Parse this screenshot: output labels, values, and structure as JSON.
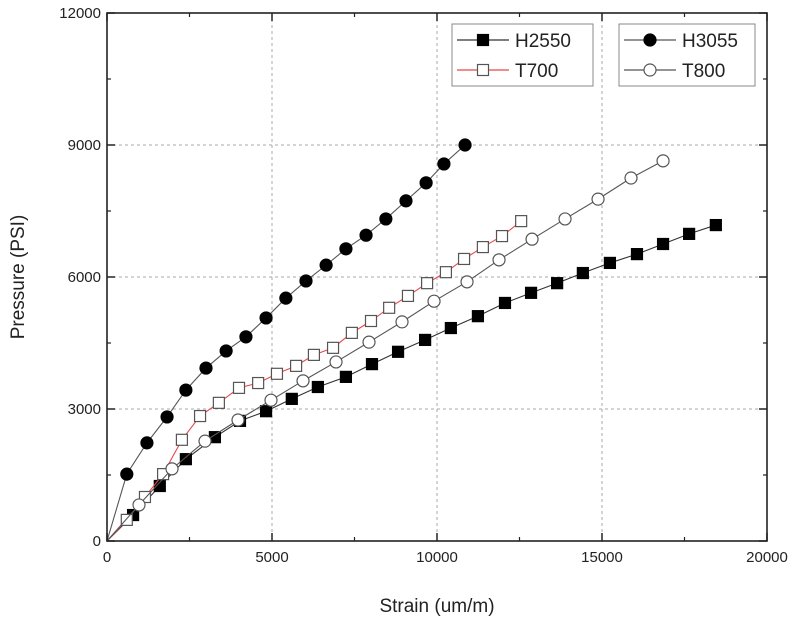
{
  "chart_data": {
    "type": "line",
    "title": "",
    "xlabel": "Strain (um/m)",
    "ylabel": "Pressure (PSI)",
    "xlim": [
      0,
      20000
    ],
    "ylim": [
      0,
      12000
    ],
    "xticks": [
      0,
      5000,
      10000,
      15000,
      20000
    ],
    "yticks": [
      0,
      3000,
      6000,
      9000,
      12000
    ],
    "grid": true,
    "legend_placement": "top-right",
    "series": [
      {
        "name": "H2550",
        "marker": "filled-square",
        "line_color": "#333333",
        "x": [
          0,
          790,
          1600,
          2390,
          3270,
          4030,
          4820,
          5600,
          6390,
          7240,
          8030,
          8820,
          9640,
          10420,
          11240,
          12060,
          12850,
          13640,
          14420,
          15240,
          16060,
          16850,
          17640,
          18450
        ],
        "y": [
          0,
          590,
          1250,
          1860,
          2360,
          2730,
          2950,
          3230,
          3500,
          3730,
          4020,
          4300,
          4570,
          4840,
          5110,
          5410,
          5640,
          5860,
          6090,
          6320,
          6520,
          6750,
          6980,
          7180
        ]
      },
      {
        "name": "T700",
        "marker": "open-square",
        "line_color": "#e8484b",
        "x": [
          0,
          600,
          1150,
          1700,
          2270,
          2820,
          3390,
          4000,
          4580,
          5150,
          5730,
          6270,
          6850,
          7420,
          8000,
          8550,
          9120,
          9700,
          10270,
          10820,
          11390,
          11970,
          12550
        ],
        "y": [
          0,
          480,
          1000,
          1520,
          2300,
          2840,
          3140,
          3480,
          3590,
          3800,
          3980,
          4230,
          4390,
          4730,
          5000,
          5300,
          5570,
          5860,
          6110,
          6410,
          6680,
          6930,
          7270
        ]
      },
      {
        "name": "H3055",
        "marker": "filled-circle",
        "line_color": "#555555",
        "x": [
          0,
          600,
          1210,
          1820,
          2390,
          3000,
          3610,
          4210,
          4820,
          5420,
          6030,
          6640,
          7240,
          7850,
          8450,
          9060,
          9670,
          10210,
          10850
        ],
        "y": [
          0,
          1520,
          2230,
          2820,
          3430,
          3930,
          4320,
          4640,
          5070,
          5520,
          5910,
          6270,
          6640,
          6950,
          7320,
          7730,
          8140,
          8570,
          9000
        ]
      },
      {
        "name": "T800",
        "marker": "open-circle",
        "line_color": "#555555",
        "x": [
          0,
          970,
          1970,
          2970,
          3970,
          4970,
          5940,
          6940,
          7940,
          8940,
          9910,
          10910,
          11880,
          12880,
          13880,
          14880,
          15880,
          16850
        ],
        "y": [
          0,
          820,
          1640,
          2270,
          2750,
          3200,
          3640,
          4070,
          4520,
          4980,
          5450,
          5890,
          6390,
          6860,
          7320,
          7770,
          8250,
          8640
        ]
      }
    ]
  }
}
